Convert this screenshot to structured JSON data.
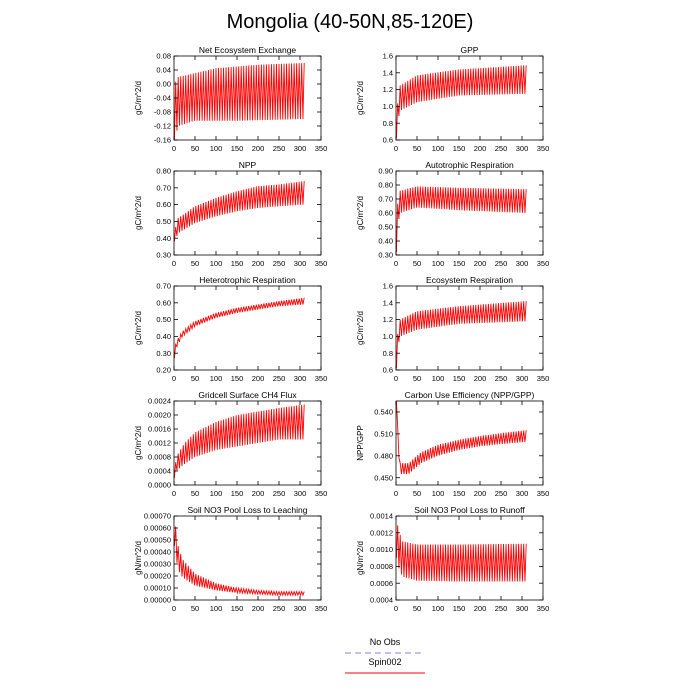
{
  "figure_title": "Mongolia (40-50N,85-120E)",
  "legend": {
    "items": [
      {
        "label": "No Obs",
        "color": "#8080ff",
        "dash": true
      },
      {
        "label": "Spin002",
        "color": "#ff0000",
        "dash": false
      }
    ]
  },
  "chart_data": [
    {
      "type": "line",
      "title": "Net Ecosystem Exchange",
      "ylabel": "gC/m^2/d",
      "xlim": [
        0,
        350
      ],
      "xticks": [
        0,
        50,
        100,
        150,
        200,
        250,
        300,
        350
      ],
      "ylim": [
        -0.16,
        0.08
      ],
      "yticks": [
        "-0.16",
        "-0.12",
        "-0.08",
        "-0.04",
        "0.00",
        "0.04",
        "0.08"
      ],
      "series": [
        {
          "color": "#ff0000",
          "x_range": [
            1,
            310
          ],
          "period": 6,
          "high": [
            [
              1,
              0.0
            ],
            [
              10,
              0.02
            ],
            [
              100,
              0.045
            ],
            [
              200,
              0.055
            ],
            [
              310,
              0.06
            ]
          ],
          "low": [
            [
              1,
              -0.16
            ],
            [
              10,
              -0.12
            ],
            [
              50,
              -0.105
            ],
            [
              150,
              -0.105
            ],
            [
              310,
              -0.1
            ]
          ]
        }
      ]
    },
    {
      "type": "line",
      "title": "GPP",
      "ylabel": "gC/m^2/d",
      "xlim": [
        0,
        350
      ],
      "xticks": [
        0,
        50,
        100,
        150,
        200,
        250,
        300,
        350
      ],
      "ylim": [
        0.6,
        1.6
      ],
      "yticks": [
        "0.6",
        "0.8",
        "1.0",
        "1.2",
        "1.4",
        "1.6"
      ],
      "series": [
        {
          "color": "#ff0000",
          "x_range": [
            1,
            310
          ],
          "period": 6,
          "high": [
            [
              1,
              0.62
            ],
            [
              3,
              1.0
            ],
            [
              10,
              1.25
            ],
            [
              50,
              1.37
            ],
            [
              150,
              1.44
            ],
            [
              310,
              1.49
            ]
          ],
          "low": [
            [
              1,
              0.62
            ],
            [
              3,
              0.8
            ],
            [
              10,
              0.95
            ],
            [
              50,
              1.05
            ],
            [
              150,
              1.13
            ],
            [
              310,
              1.15
            ]
          ]
        }
      ]
    },
    {
      "type": "line",
      "title": "NPP",
      "ylabel": "gC/m^2/d",
      "xlim": [
        0,
        350
      ],
      "xticks": [
        0,
        50,
        100,
        150,
        200,
        250,
        300,
        350
      ],
      "ylim": [
        0.3,
        0.8
      ],
      "yticks": [
        "0.30",
        "0.40",
        "0.50",
        "0.60",
        "0.70",
        "0.80"
      ],
      "series": [
        {
          "color": "#ff0000",
          "x_range": [
            1,
            310
          ],
          "period": 6,
          "high": [
            [
              1,
              0.44
            ],
            [
              10,
              0.52
            ],
            [
              50,
              0.59
            ],
            [
              100,
              0.64
            ],
            [
              150,
              0.68
            ],
            [
              200,
              0.71
            ],
            [
              250,
              0.72
            ],
            [
              310,
              0.74
            ]
          ],
          "low": [
            [
              1,
              0.38
            ],
            [
              10,
              0.43
            ],
            [
              50,
              0.49
            ],
            [
              100,
              0.53
            ],
            [
              150,
              0.56
            ],
            [
              200,
              0.58
            ],
            [
              250,
              0.59
            ],
            [
              310,
              0.6
            ]
          ]
        }
      ]
    },
    {
      "type": "line",
      "title": "Autotrophic Respiration",
      "ylabel": "gC/m^2/d",
      "xlim": [
        0,
        350
      ],
      "xticks": [
        0,
        50,
        100,
        150,
        200,
        250,
        300,
        350
      ],
      "ylim": [
        0.3,
        0.9
      ],
      "yticks": [
        "0.30",
        "0.40",
        "0.50",
        "0.60",
        "0.70",
        "0.80",
        "0.90"
      ],
      "series": [
        {
          "color": "#ff0000",
          "x_range": [
            1,
            310
          ],
          "period": 6,
          "high": [
            [
              1,
              0.32
            ],
            [
              3,
              0.65
            ],
            [
              10,
              0.76
            ],
            [
              50,
              0.79
            ],
            [
              150,
              0.78
            ],
            [
              310,
              0.77
            ]
          ],
          "low": [
            [
              1,
              0.32
            ],
            [
              3,
              0.5
            ],
            [
              10,
              0.6
            ],
            [
              50,
              0.64
            ],
            [
              150,
              0.62
            ],
            [
              310,
              0.6
            ]
          ]
        }
      ]
    },
    {
      "type": "line",
      "title": "Heterotrophic Respiration",
      "ylabel": "gC/m^2/d",
      "xlim": [
        0,
        350
      ],
      "xticks": [
        0,
        50,
        100,
        150,
        200,
        250,
        300,
        350
      ],
      "ylim": [
        0.2,
        0.7
      ],
      "yticks": [
        "0.20",
        "0.30",
        "0.40",
        "0.50",
        "0.60",
        "0.70"
      ],
      "series": [
        {
          "color": "#ff0000",
          "x_range": [
            1,
            310
          ],
          "period": 6,
          "high": [
            [
              1,
              0.3
            ],
            [
              5,
              0.37
            ],
            [
              20,
              0.43
            ],
            [
              50,
              0.49
            ],
            [
              100,
              0.54
            ],
            [
              150,
              0.57
            ],
            [
              200,
              0.59
            ],
            [
              250,
              0.61
            ],
            [
              310,
              0.63
            ]
          ],
          "low": [
            [
              1,
              0.27
            ],
            [
              5,
              0.33
            ],
            [
              20,
              0.4
            ],
            [
              50,
              0.46
            ],
            [
              100,
              0.51
            ],
            [
              150,
              0.54
            ],
            [
              200,
              0.56
            ],
            [
              250,
              0.58
            ],
            [
              310,
              0.59
            ]
          ]
        }
      ]
    },
    {
      "type": "line",
      "title": "Ecosystem Respiration",
      "ylabel": "gC/m^2/d",
      "xlim": [
        0,
        350
      ],
      "xticks": [
        0,
        50,
        100,
        150,
        200,
        250,
        300,
        350
      ],
      "ylim": [
        0.6,
        1.6
      ],
      "yticks": [
        "0.6",
        "0.8",
        "1.0",
        "1.2",
        "1.4",
        "1.6"
      ],
      "series": [
        {
          "color": "#ff0000",
          "x_range": [
            1,
            310
          ],
          "period": 6,
          "high": [
            [
              1,
              0.62
            ],
            [
              3,
              1.0
            ],
            [
              10,
              1.2
            ],
            [
              50,
              1.3
            ],
            [
              150,
              1.36
            ],
            [
              310,
              1.42
            ]
          ],
          "low": [
            [
              1,
              0.62
            ],
            [
              3,
              0.85
            ],
            [
              10,
              1.0
            ],
            [
              50,
              1.08
            ],
            [
              150,
              1.15
            ],
            [
              310,
              1.18
            ]
          ]
        }
      ]
    },
    {
      "type": "line",
      "title": "Gridcell Surface CH4 Flux",
      "ylabel": "gC/m^2/d",
      "xlim": [
        0,
        350
      ],
      "xticks": [
        0,
        50,
        100,
        150,
        200,
        250,
        300,
        350
      ],
      "ylim": [
        0,
        0.0024
      ],
      "yticks": [
        "0.0000",
        "0.0004",
        "0.0008",
        "0.0012",
        "0.0016",
        "0.0020",
        "0.0024"
      ],
      "series": [
        {
          "color": "#ff0000",
          "x_range": [
            1,
            310
          ],
          "period": 6,
          "high": [
            [
              1,
              0.0002
            ],
            [
              5,
              0.0008
            ],
            [
              25,
              0.0012
            ],
            [
              50,
              0.0015
            ],
            [
              100,
              0.0018
            ],
            [
              150,
              0.002
            ],
            [
              200,
              0.0021
            ],
            [
              250,
              0.0022
            ],
            [
              310,
              0.0023
            ]
          ],
          "low": [
            [
              1,
              0.0002
            ],
            [
              5,
              0.0004
            ],
            [
              25,
              0.0006
            ],
            [
              50,
              0.0008
            ],
            [
              100,
              0.001
            ],
            [
              150,
              0.0011
            ],
            [
              200,
              0.0012
            ],
            [
              250,
              0.0013
            ],
            [
              310,
              0.0013
            ]
          ]
        }
      ]
    },
    {
      "type": "line",
      "title": "Carbon Use Efficiency (NPP/GPP)",
      "ylabel": "NPP/GPP",
      "xlim": [
        0,
        350
      ],
      "xticks": [
        0,
        50,
        100,
        150,
        200,
        250,
        300,
        350
      ],
      "ylim": [
        0.44,
        0.555
      ],
      "yticks": [
        "0.450",
        "0.480",
        "0.510",
        "0.540"
      ],
      "series": [
        {
          "color": "#ff0000",
          "x_range": [
            1,
            310
          ],
          "period": 6,
          "high": [
            [
              1,
              0.555
            ],
            [
              4,
              0.52
            ],
            [
              10,
              0.47
            ],
            [
              30,
              0.47
            ],
            [
              60,
              0.485
            ],
            [
              100,
              0.495
            ],
            [
              150,
              0.502
            ],
            [
              200,
              0.507
            ],
            [
              250,
              0.511
            ],
            [
              310,
              0.515
            ]
          ],
          "low": [
            [
              1,
              0.555
            ],
            [
              4,
              0.5
            ],
            [
              10,
              0.455
            ],
            [
              30,
              0.455
            ],
            [
              60,
              0.47
            ],
            [
              100,
              0.48
            ],
            [
              150,
              0.488
            ],
            [
              200,
              0.493
            ],
            [
              250,
              0.496
            ],
            [
              310,
              0.499
            ]
          ]
        }
      ]
    },
    {
      "type": "line",
      "title": "Soil NO3 Pool Loss to Leaching",
      "ylabel": "gN/m^2/d",
      "xlim": [
        0,
        350
      ],
      "xticks": [
        0,
        50,
        100,
        150,
        200,
        250,
        300,
        350
      ],
      "ylim": [
        0,
        0.0007
      ],
      "yticks": [
        "0.00000",
        "0.00010",
        "0.00020",
        "0.00030",
        "0.00040",
        "0.00050",
        "0.00060",
        "0.00070"
      ],
      "series": [
        {
          "color": "#ff0000",
          "x_range": [
            1,
            310
          ],
          "period": 6,
          "high": [
            [
              1,
              0.00065
            ],
            [
              5,
              0.0006
            ],
            [
              10,
              0.00045
            ],
            [
              20,
              0.00034
            ],
            [
              50,
              0.00022
            ],
            [
              100,
              0.00014
            ],
            [
              150,
              0.0001
            ],
            [
              200,
              8e-05
            ],
            [
              250,
              7e-05
            ],
            [
              310,
              7e-05
            ]
          ],
          "low": [
            [
              1,
              0.00045
            ],
            [
              5,
              0.00035
            ],
            [
              10,
              0.00025
            ],
            [
              20,
              0.00019
            ],
            [
              50,
              0.00012
            ],
            [
              100,
              8e-05
            ],
            [
              150,
              6e-05
            ],
            [
              200,
              5e-05
            ],
            [
              250,
              4e-05
            ],
            [
              310,
              4e-05
            ]
          ]
        }
      ]
    },
    {
      "type": "line",
      "title": "Soil NO3 Pool Loss to Runoff",
      "ylabel": "gN/m^2/d",
      "xlim": [
        0,
        350
      ],
      "xticks": [
        0,
        50,
        100,
        150,
        200,
        250,
        300,
        350
      ],
      "ylim": [
        0.0004,
        0.0014
      ],
      "yticks": [
        "0.0004",
        "0.0006",
        "0.0008",
        "0.0010",
        "0.0012",
        "0.0014"
      ],
      "series": [
        {
          "color": "#ff0000",
          "x_range": [
            1,
            310
          ],
          "period": 6,
          "high": [
            [
              1,
              0.0014
            ],
            [
              5,
              0.00125
            ],
            [
              15,
              0.0011
            ],
            [
              50,
              0.00106
            ],
            [
              150,
              0.00106
            ],
            [
              310,
              0.00107
            ]
          ],
          "low": [
            [
              1,
              0.0009
            ],
            [
              5,
              0.0008
            ],
            [
              15,
              0.00068
            ],
            [
              50,
              0.00063
            ],
            [
              150,
              0.00062
            ],
            [
              310,
              0.00062
            ]
          ]
        }
      ]
    }
  ]
}
